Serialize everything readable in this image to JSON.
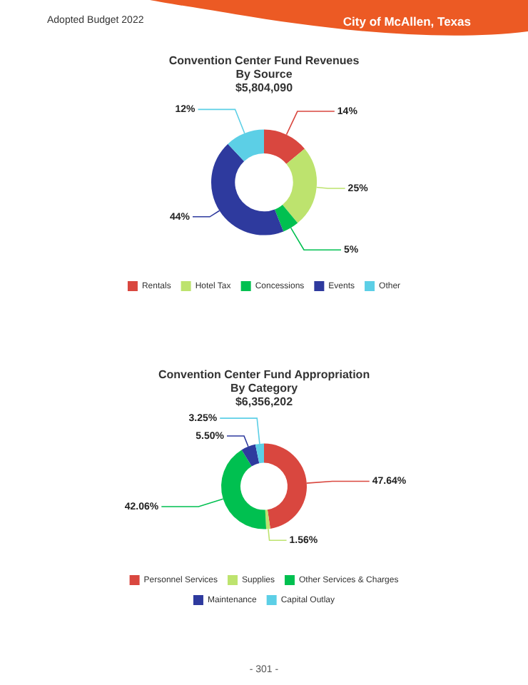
{
  "chart_data": [
    {
      "type": "donut",
      "title": "Convention Center Fund Revenues\nBy Source",
      "subtitle": "$5,804,090",
      "categories": [
        "Rentals",
        "Hotel Tax",
        "Concessions",
        "Events",
        "Other"
      ],
      "values": [
        14,
        25,
        5,
        44,
        12
      ],
      "value_labels": [
        "14%",
        "25%",
        "5%",
        "44%",
        "12%"
      ],
      "colors": [
        "#d9473f",
        "#bde36e",
        "#00c050",
        "#2e3a9e",
        "#5ccfe6"
      ],
      "legend": "bottom",
      "annotations": [
        "Adopted Budget 2022",
        "City of McAllen, Texas"
      ]
    },
    {
      "type": "donut",
      "title": "Convention Center Fund Appropriation\nBy Category",
      "subtitle": "$6,356,202",
      "categories": [
        "Personnel Services",
        "Supplies",
        "Other Services & Charges",
        "Maintenance",
        "Capital Outlay"
      ],
      "values": [
        47.64,
        1.56,
        42.06,
        5.5,
        3.25
      ],
      "value_labels": [
        "47.64%",
        "1.56%",
        "42.06%",
        "5.50%",
        "3.25%"
      ],
      "colors": [
        "#d9473f",
        "#bde36e",
        "#00c050",
        "#2e3a9e",
        "#5ccfe6"
      ],
      "legend": "bottom",
      "annotations": [
        "- 301 -"
      ]
    }
  ]
}
